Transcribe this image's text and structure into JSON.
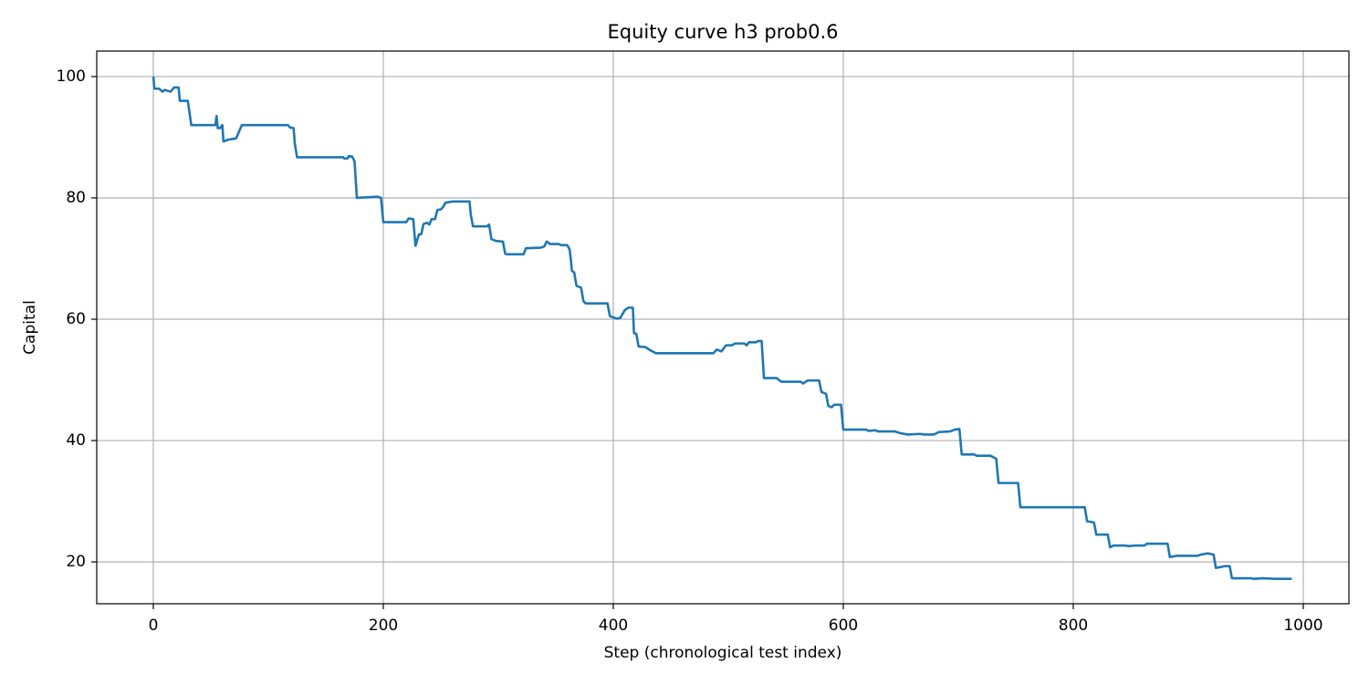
{
  "chart_data": {
    "type": "line",
    "title": "Equity curve h3 prob0.6",
    "x_label": "Step (chronological test index)",
    "y_label": "Capital",
    "color": "#1f77b4",
    "grid": true,
    "xlim": [
      -49.2,
      1039.7
    ],
    "ylim": [
      13.1,
      104.2
    ],
    "xticks": [
      0,
      200,
      400,
      600,
      800,
      1000
    ],
    "yticks": [
      20,
      40,
      60,
      80,
      100
    ],
    "x": [
      0,
      1,
      5,
      8,
      10,
      15,
      18,
      22,
      23,
      30,
      33,
      54,
      55,
      56,
      58,
      60,
      61,
      65,
      72,
      77,
      117,
      119,
      122,
      123,
      125,
      165,
      166,
      169,
      170,
      173,
      175,
      177,
      195,
      198,
      200,
      220,
      222,
      226,
      228,
      231,
      233,
      235,
      238,
      240,
      242,
      245,
      247,
      250,
      252,
      254,
      260,
      275,
      276,
      278,
      290,
      292,
      294,
      298,
      304,
      306,
      308,
      322,
      324,
      337,
      340,
      342,
      345,
      352,
      355,
      360,
      362,
      363,
      364,
      366,
      368,
      372,
      374,
      376,
      395,
      397,
      403,
      406,
      410,
      413,
      417,
      418,
      420,
      422,
      428,
      432,
      437,
      487,
      490,
      494,
      498,
      503,
      506,
      514,
      516,
      518,
      524,
      526,
      529,
      531,
      542,
      546,
      563,
      565,
      569,
      579,
      581,
      585,
      587,
      590,
      592,
      598,
      600,
      620,
      622,
      628,
      630,
      645,
      650,
      656,
      667,
      670,
      679,
      683,
      693,
      697,
      701,
      703,
      714,
      716,
      728,
      733,
      735,
      752,
      754,
      810,
      812,
      818,
      820,
      830,
      832,
      835,
      845,
      848,
      855,
      862,
      864,
      882,
      884,
      890,
      908,
      911,
      917,
      922,
      924,
      932,
      936,
      938,
      955,
      957,
      965,
      975,
      990
    ],
    "values": [
      100,
      98,
      98,
      97.5,
      97.8,
      97.5,
      98.2,
      98.2,
      96,
      96,
      92,
      92,
      93.5,
      91.5,
      91.5,
      92,
      89.3,
      89.6,
      89.8,
      92,
      92,
      91.6,
      91.5,
      89,
      86.7,
      86.7,
      86.5,
      86.5,
      86.9,
      86.8,
      86,
      80,
      80.2,
      80,
      76,
      76,
      76.6,
      76.5,
      72.1,
      74,
      74,
      75.7,
      75.9,
      75.6,
      76.5,
      76.5,
      78,
      78.1,
      78.5,
      79.2,
      79.4,
      79.4,
      77.3,
      75.3,
      75.3,
      75.6,
      73.2,
      72.9,
      72.8,
      70.8,
      70.7,
      70.7,
      71.7,
      71.8,
      72,
      72.8,
      72.4,
      72.4,
      72.2,
      72.2,
      71.5,
      70,
      68,
      67.7,
      65.5,
      65.2,
      63,
      62.6,
      62.6,
      60.5,
      60.1,
      60.2,
      61.5,
      61.9,
      61.9,
      57.7,
      57.6,
      55.5,
      55.4,
      54.9,
      54.4,
      54.4,
      55,
      54.7,
      55.7,
      55.7,
      56,
      56,
      55.7,
      56.2,
      56.2,
      56.4,
      56.4,
      50.3,
      50.3,
      49.7,
      49.7,
      49.4,
      49.9,
      49.9,
      48,
      47.7,
      45.7,
      45.5,
      45.9,
      45.9,
      41.8,
      41.8,
      41.6,
      41.7,
      41.5,
      41.5,
      41.2,
      41,
      41.1,
      41,
      41,
      41.4,
      41.5,
      41.8,
      41.9,
      37.7,
      37.7,
      37.5,
      37.5,
      37,
      33,
      33,
      29,
      29,
      26.7,
      26.5,
      24.5,
      24.5,
      22.4,
      22.7,
      22.7,
      22.6,
      22.7,
      22.7,
      23,
      23,
      20.8,
      21,
      21,
      21.2,
      21.4,
      21.2,
      19,
      19.3,
      19.3,
      17.3,
      17.3,
      17.2,
      17.3,
      17.2,
      17.2
    ]
  }
}
